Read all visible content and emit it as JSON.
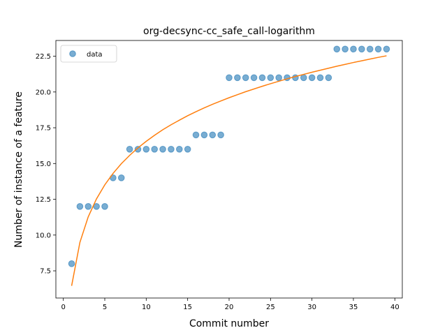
{
  "chart_data": {
    "type": "scatter",
    "title": "org-decsync-cc_safe_call-logarithm",
    "xlabel": "Commit number",
    "ylabel": "Number of instance of a feature",
    "xlim": [
      -0.9,
      40.9
    ],
    "ylim": [
      5.6,
      23.6
    ],
    "xticks": [
      0,
      5,
      10,
      15,
      20,
      25,
      30,
      35,
      40
    ],
    "yticks": [
      7.5,
      10.0,
      12.5,
      15.0,
      17.5,
      20.0,
      22.5
    ],
    "xtick_labels": [
      "0",
      "5",
      "10",
      "15",
      "20",
      "25",
      "30",
      "35",
      "40"
    ],
    "ytick_labels": [
      "7.5",
      "10.0",
      "12.5",
      "15.0",
      "17.5",
      "20.0",
      "22.5"
    ],
    "grid": false,
    "legend": {
      "position": "top-left",
      "entries": [
        "data"
      ]
    },
    "series": [
      {
        "name": "data",
        "kind": "scatter",
        "color": "#1f77b4",
        "x": [
          1,
          2,
          3,
          4,
          5,
          6,
          7,
          8,
          9,
          10,
          11,
          12,
          13,
          14,
          15,
          16,
          17,
          18,
          19,
          20,
          21,
          22,
          23,
          24,
          25,
          26,
          27,
          28,
          29,
          30,
          31,
          32,
          33,
          34,
          35,
          36,
          37,
          38,
          39
        ],
        "y": [
          8,
          12,
          12,
          12,
          12,
          14,
          14,
          16,
          16,
          16,
          16,
          16,
          16,
          16,
          16,
          17,
          17,
          17,
          17,
          21,
          21,
          21,
          21,
          21,
          21,
          21,
          21,
          21,
          21,
          21,
          21,
          21,
          23,
          23,
          23,
          23,
          23,
          23,
          23
        ]
      },
      {
        "kind": "line",
        "color": "#ff7f0e",
        "x": [
          1,
          2,
          3,
          4,
          5,
          6,
          7,
          8,
          9,
          10,
          11,
          12,
          13,
          14,
          15,
          16,
          17,
          18,
          19,
          20,
          21,
          22,
          23,
          24,
          25,
          26,
          27,
          28,
          29,
          30,
          31,
          32,
          33,
          34,
          35,
          36,
          37,
          38,
          39
        ],
        "y": [
          6.45,
          9.49,
          11.27,
          12.53,
          13.51,
          14.31,
          14.99,
          15.57,
          16.09,
          16.55,
          16.97,
          17.36,
          17.71,
          18.03,
          18.34,
          18.62,
          18.89,
          19.14,
          19.37,
          19.6,
          19.81,
          20.02,
          20.21,
          20.4,
          20.58,
          20.75,
          20.92,
          21.08,
          21.23,
          21.38,
          21.52,
          21.66,
          21.8,
          21.93,
          22.06,
          22.18,
          22.3,
          22.42,
          22.53
        ]
      }
    ]
  }
}
